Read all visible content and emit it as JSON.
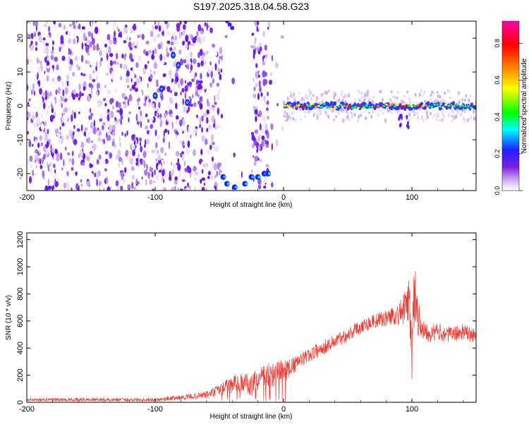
{
  "page_title": "S197.2025.318.04.58.G23",
  "colors": {
    "line": "#ee3b33",
    "axis": "#000000",
    "background": "#ffffff"
  },
  "chart_data": [
    {
      "id": "spectrogram",
      "type": "heatmap",
      "xlabel": "Height of straight line (km)",
      "ylabel": "Frequency (Hz)",
      "xlim": [
        -200,
        150
      ],
      "ylim": [
        -25,
        25
      ],
      "x_ticks": [
        "-200",
        "-100",
        "0",
        "100"
      ],
      "x_tick_values": [
        -200,
        -100,
        0,
        100
      ],
      "y_ticks": [
        "20",
        "10",
        "0",
        "-10",
        "-20"
      ],
      "y_tick_values": [
        20,
        10,
        0,
        -10,
        -20
      ],
      "colorbar": {
        "label": "Normalized spectral amplitude",
        "range": [
          0,
          0.92
        ],
        "ticks": [
          "0.0",
          "0.2",
          "0.4",
          "0.6",
          "0.8"
        ],
        "tick_values": [
          0.0,
          0.2,
          0.4,
          0.6,
          0.8
        ],
        "colormap": [
          "#ffffff",
          "#7b1fe0",
          "#1f1fff",
          "#00ffff",
          "#00ff00",
          "#ffff00",
          "#ff8800",
          "#ff0000",
          "#ff00aa"
        ]
      },
      "features": {
        "noise_region_x": [
          -200,
          0
        ],
        "gap_region_x": [
          -48,
          -25
        ],
        "gap_region_x2": [
          -12,
          0
        ],
        "signal_line_x": [
          0,
          150
        ],
        "signal_line_frequency": 0,
        "left_arc_points": [
          [
            -47,
            -21
          ],
          [
            -44,
            -23
          ],
          [
            -38,
            -24
          ],
          [
            -30,
            -23
          ],
          [
            -25,
            -21
          ],
          [
            -20,
            -21
          ],
          [
            -15,
            -20
          ],
          [
            -12,
            -20
          ]
        ],
        "top_arc_points": [
          [
            -44,
            25
          ],
          [
            -42,
            24
          ],
          [
            -40,
            23
          ]
        ],
        "hot_spots": [
          [
            -100,
            3
          ],
          [
            -95,
            5
          ],
          [
            -75,
            1
          ],
          [
            -82,
            12
          ],
          [
            -86,
            15
          ]
        ]
      }
    },
    {
      "id": "snr",
      "type": "line",
      "xlabel": "Height of straight line (km)",
      "ylabel": "SNR (10 * v/v)",
      "xlim": [
        -200,
        150
      ],
      "ylim": [
        0,
        1250
      ],
      "x_ticks": [
        "-200",
        "-100",
        "0",
        "100"
      ],
      "x_tick_values": [
        -200,
        -100,
        0,
        100
      ],
      "y_ticks": [
        "0",
        "200",
        "400",
        "600",
        "800",
        "1000",
        "1200"
      ],
      "y_tick_values": [
        0,
        200,
        400,
        600,
        800,
        1000,
        1200
      ],
      "series": [
        {
          "x": [
            -200,
            -175,
            -150,
            -125,
            -100,
            -80,
            -70,
            -60,
            -50,
            -45,
            -40,
            -35,
            -30,
            -25,
            -20,
            -15,
            -10,
            -5,
            0,
            5,
            10,
            15,
            20,
            30,
            40,
            50,
            60,
            70,
            80,
            85,
            90,
            95,
            98,
            100,
            102,
            105,
            110,
            115,
            120,
            130,
            140,
            150
          ],
          "y": [
            20,
            20,
            20,
            20,
            20,
            35,
            45,
            55,
            90,
            110,
            130,
            150,
            145,
            120,
            170,
            175,
            200,
            220,
            230,
            250,
            290,
            320,
            350,
            400,
            450,
            500,
            560,
            600,
            620,
            640,
            650,
            700,
            750,
            300,
            800,
            600,
            540,
            510,
            520,
            500,
            520,
            480
          ],
          "noise_amplitude": [
            12,
            12,
            12,
            12,
            14,
            18,
            22,
            28,
            45,
            55,
            60,
            70,
            70,
            80,
            90,
            100,
            100,
            90,
            80,
            70,
            60,
            55,
            55,
            55,
            55,
            55,
            55,
            55,
            60,
            70,
            90,
            130,
            200,
            200,
            200,
            140,
            90,
            70,
            65,
            60,
            60,
            60
          ]
        }
      ]
    }
  ]
}
